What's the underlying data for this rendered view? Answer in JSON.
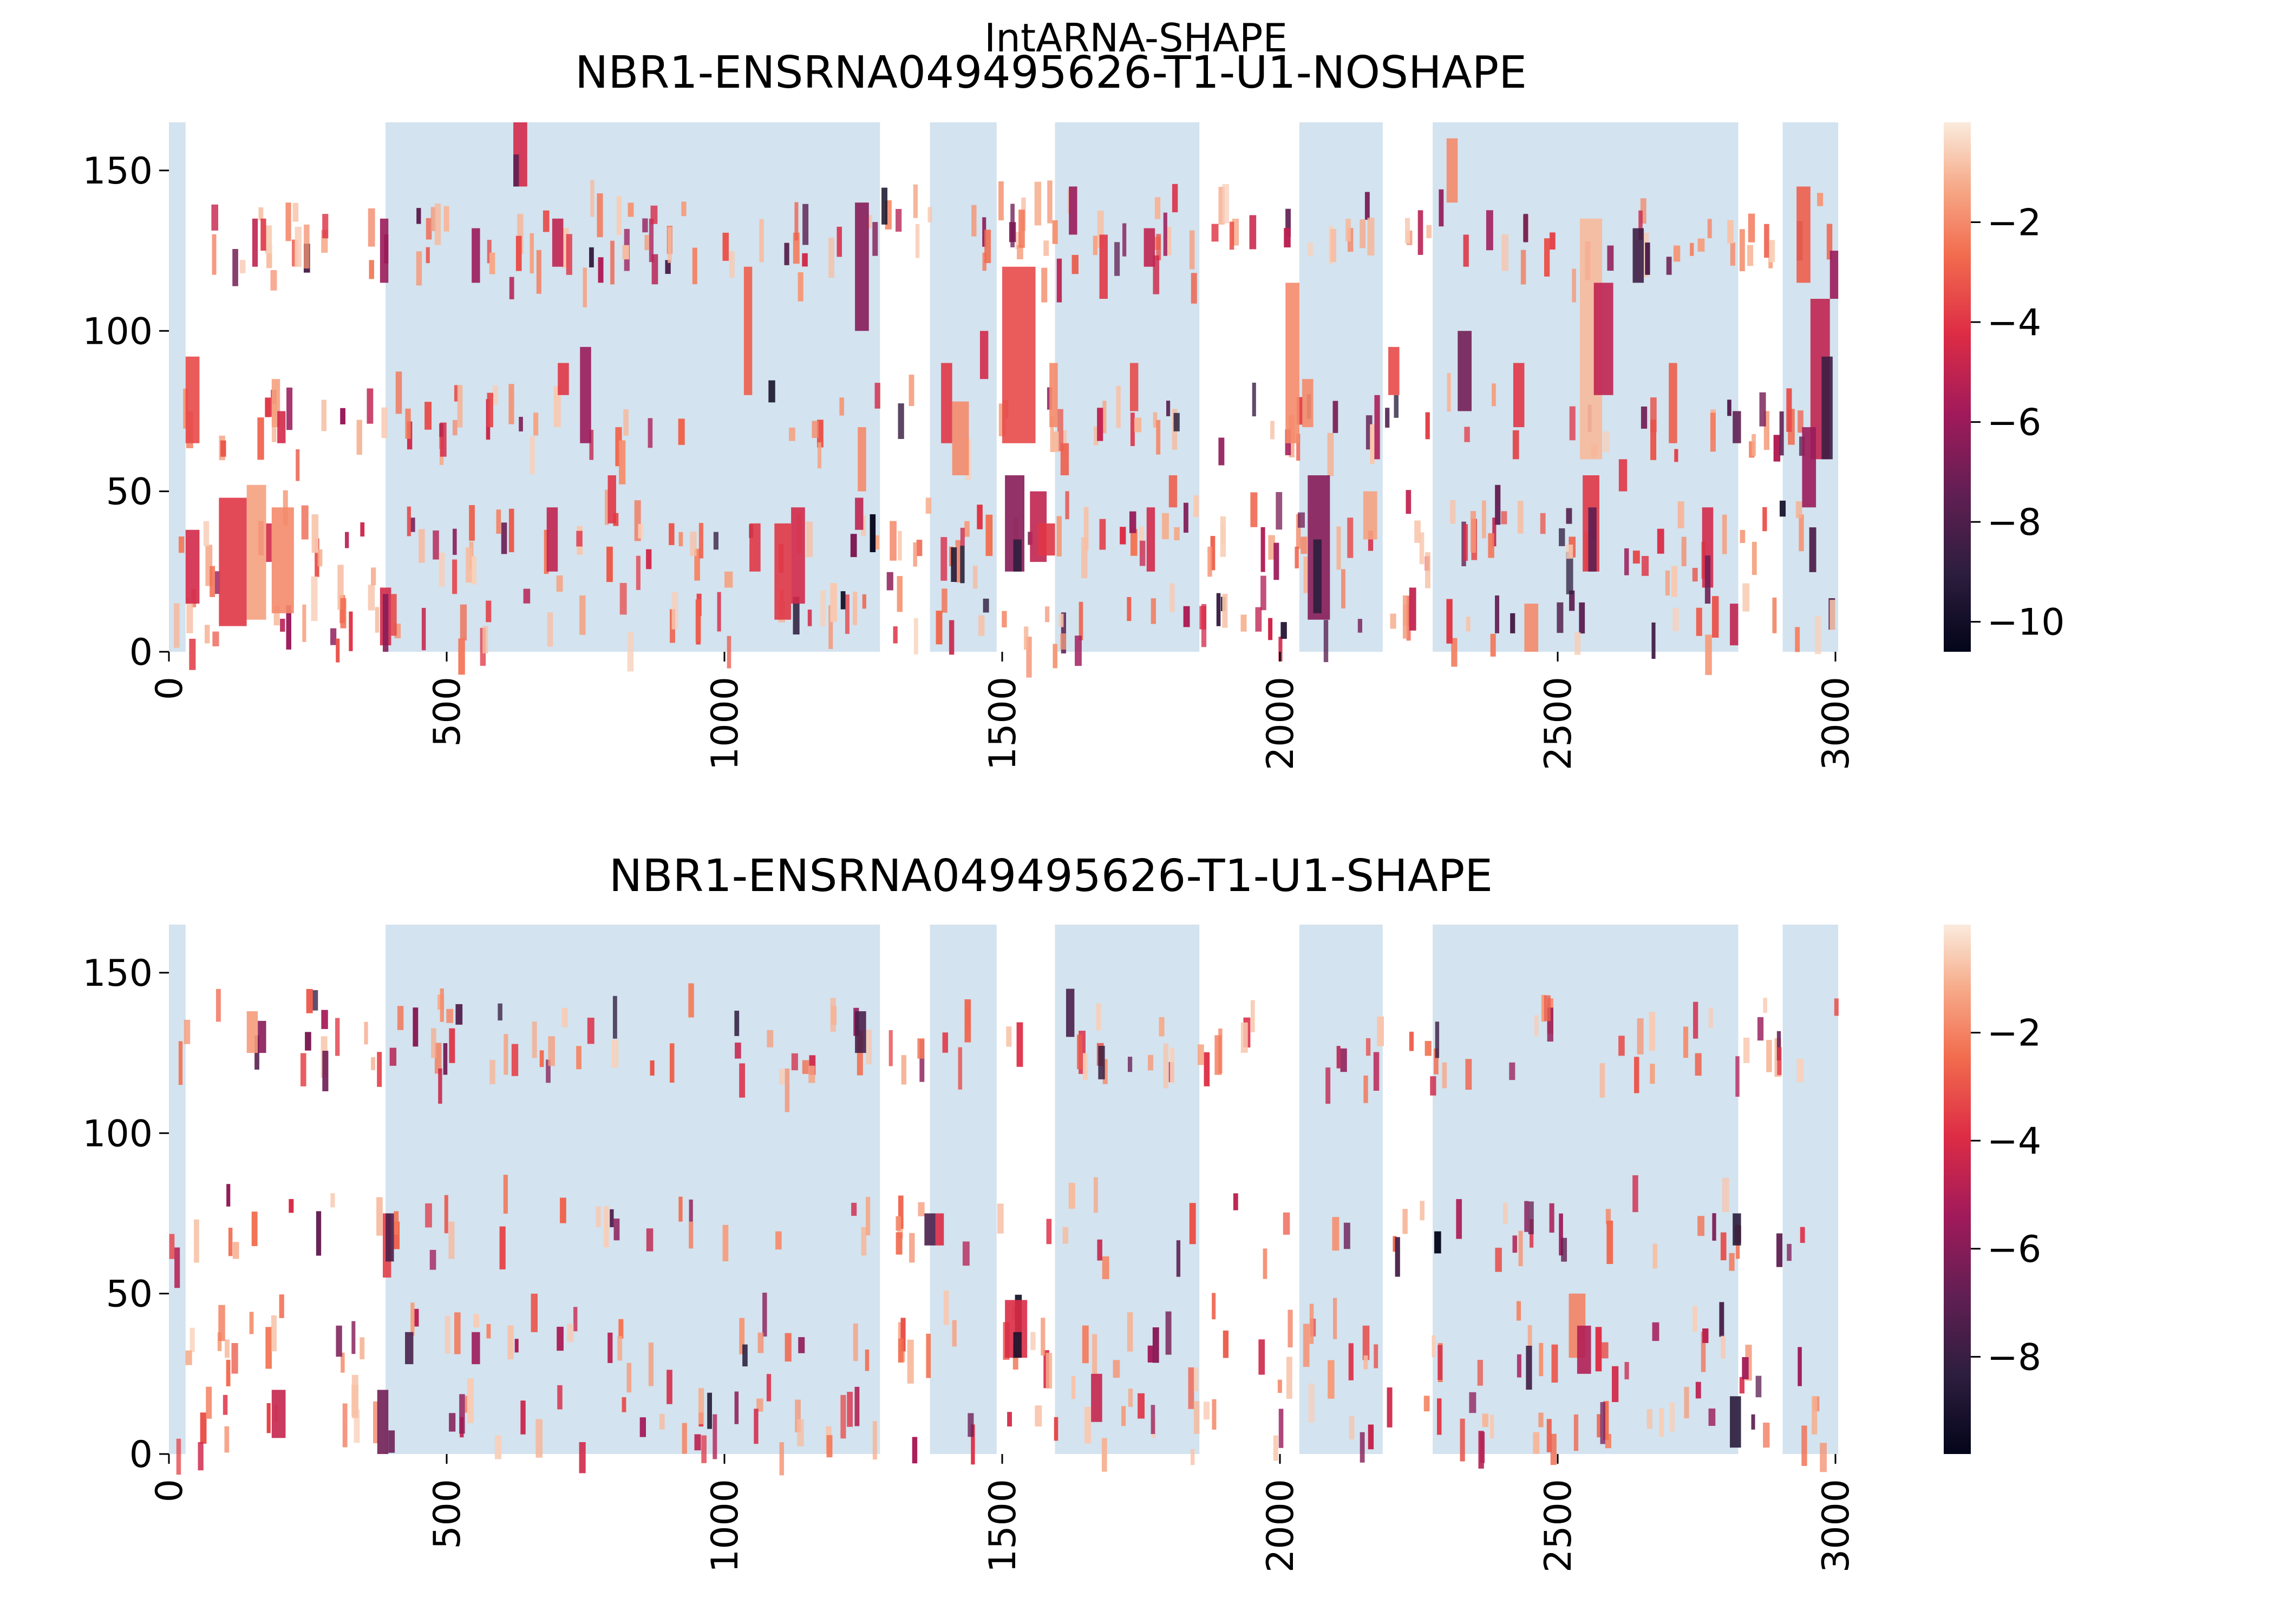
{
  "suptitle": "IntARNA-SHAPE",
  "chart_data": [
    {
      "type": "heatmap",
      "title": "NBR1-ENSRNA049495626-T1-U1-NOSHAPE",
      "xlim": [
        0,
        3000
      ],
      "ylim": [
        0,
        165
      ],
      "x_ticks": [
        "0",
        "500",
        "1000",
        "1500",
        "2000",
        "2500",
        "3000"
      ],
      "y_ticks": [
        "0",
        "50",
        "100",
        "150"
      ],
      "colorbar": {
        "min": -10.6,
        "max": 0,
        "ticks": [
          "-2",
          "-4",
          "-6",
          "-8",
          "-10"
        ],
        "tick_values": [
          -2,
          -4,
          -6,
          -8,
          -10
        ]
      },
      "highlight_regions": [
        [
          0,
          30
        ],
        [
          390,
          1280
        ],
        [
          1370,
          1490
        ],
        [
          1595,
          1855
        ],
        [
          2035,
          2185
        ],
        [
          2275,
          2825
        ],
        [
          2905,
          3005
        ]
      ],
      "cells": [
        [
          30,
          55,
          15,
          38,
          -4.5
        ],
        [
          30,
          55,
          65,
          92,
          -3.5
        ],
        [
          90,
          140,
          8,
          48,
          -4.0
        ],
        [
          140,
          175,
          10,
          52,
          -1.5
        ],
        [
          175,
          185,
          28,
          40,
          -4.5
        ],
        [
          185,
          225,
          12,
          45,
          -2.0
        ],
        [
          185,
          200,
          70,
          85,
          -1.5
        ],
        [
          195,
          210,
          65,
          75,
          -4.5
        ],
        [
          150,
          160,
          120,
          135,
          -5.0
        ],
        [
          165,
          175,
          125,
          135,
          -4.0
        ],
        [
          210,
          220,
          128,
          140,
          -2.0
        ],
        [
          380,
          400,
          2,
          20,
          -4.5
        ],
        [
          385,
          395,
          0,
          18,
          -6.5
        ],
        [
          400,
          410,
          5,
          18,
          -3.5
        ],
        [
          380,
          395,
          115,
          135,
          -6.0
        ],
        [
          620,
          645,
          145,
          165,
          -4.5
        ],
        [
          620,
          630,
          145,
          155,
          -7.5
        ],
        [
          545,
          560,
          115,
          132,
          -6.0
        ],
        [
          690,
          710,
          120,
          135,
          -5.0
        ],
        [
          700,
          720,
          80,
          90,
          -4.0
        ],
        [
          740,
          760,
          65,
          95,
          -6.0
        ],
        [
          680,
          700,
          25,
          45,
          -5.0
        ],
        [
          790,
          805,
          40,
          55,
          -4.0
        ],
        [
          1035,
          1050,
          80,
          120,
          -3.0
        ],
        [
          1045,
          1065,
          25,
          40,
          -4.0
        ],
        [
          1000,
          1015,
          20,
          25,
          -1.5
        ],
        [
          1090,
          1120,
          10,
          40,
          -4.0
        ],
        [
          1120,
          1145,
          15,
          45,
          -4.5
        ],
        [
          1235,
          1260,
          100,
          140,
          -6.5
        ],
        [
          1240,
          1255,
          50,
          70,
          -2.0
        ],
        [
          1235,
          1250,
          38,
          48,
          -5.0
        ],
        [
          1390,
          1410,
          65,
          90,
          -4.0
        ],
        [
          1410,
          1440,
          55,
          78,
          -2.0
        ],
        [
          1460,
          1475,
          85,
          100,
          -4.5
        ],
        [
          1500,
          1560,
          65,
          120,
          -3.5
        ],
        [
          1505,
          1540,
          25,
          55,
          -6.5
        ],
        [
          1520,
          1535,
          25,
          35,
          -9.0
        ],
        [
          1550,
          1580,
          28,
          50,
          -5.0
        ],
        [
          1565,
          1595,
          30,
          40,
          -4.0
        ],
        [
          1585,
          1600,
          70,
          90,
          -2.0
        ],
        [
          1605,
          1620,
          55,
          65,
          -3.0
        ],
        [
          1620,
          1635,
          130,
          145,
          -6.0
        ],
        [
          1675,
          1690,
          110,
          130,
          -4.0
        ],
        [
          1755,
          1775,
          120,
          132,
          -5.0
        ],
        [
          1730,
          1745,
          75,
          90,
          -3.5
        ],
        [
          1760,
          1775,
          25,
          45,
          -4.5
        ],
        [
          1800,
          1815,
          45,
          55,
          -3.0
        ],
        [
          2010,
          2035,
          65,
          115,
          -2.0
        ],
        [
          2040,
          2060,
          70,
          85,
          -2.0
        ],
        [
          2050,
          2090,
          10,
          55,
          -6.5
        ],
        [
          2060,
          2075,
          12,
          35,
          -9.0
        ],
        [
          2150,
          2175,
          35,
          50,
          -1.5
        ],
        [
          2170,
          2180,
          60,
          80,
          -5.5
        ],
        [
          2195,
          2215,
          80,
          95,
          -3.5
        ],
        [
          2320,
          2345,
          75,
          100,
          -7.0
        ],
        [
          2330,
          2340,
          120,
          130,
          -4.0
        ],
        [
          2300,
          2320,
          140,
          160,
          -2.0
        ],
        [
          2420,
          2440,
          70,
          90,
          -4.0
        ],
        [
          2440,
          2465,
          0,
          15,
          -2.0
        ],
        [
          2540,
          2580,
          60,
          135,
          -1.0
        ],
        [
          2545,
          2575,
          25,
          55,
          -4.0
        ],
        [
          2555,
          2570,
          25,
          45,
          -7.5
        ],
        [
          2565,
          2600,
          80,
          115,
          -5.0
        ],
        [
          2635,
          2655,
          115,
          132,
          -8.5
        ],
        [
          2610,
          2625,
          50,
          60,
          -4.0
        ],
        [
          2700,
          2715,
          65,
          90,
          -3.0
        ],
        [
          2760,
          2780,
          20,
          45,
          -4.5
        ],
        [
          2765,
          2775,
          15,
          30,
          -7.0
        ],
        [
          2810,
          2825,
          2,
          15,
          -5.0
        ],
        [
          2815,
          2830,
          65,
          75,
          -7.5
        ],
        [
          2930,
          2955,
          115,
          145,
          -3.0
        ],
        [
          2955,
          2990,
          60,
          110,
          -5.0
        ],
        [
          2975,
          2995,
          60,
          92,
          -8.5
        ],
        [
          2940,
          2965,
          45,
          70,
          -6.0
        ],
        [
          2990,
          3005,
          110,
          125,
          -6.0
        ]
      ]
    },
    {
      "type": "heatmap",
      "title": "NBR1-ENSRNA049495626-T1-U1-SHAPE",
      "xlim": [
        0,
        3000
      ],
      "ylim": [
        0,
        165
      ],
      "x_ticks": [
        "0",
        "500",
        "1000",
        "1500",
        "2000",
        "2500",
        "3000"
      ],
      "y_ticks": [
        "0",
        "50",
        "100",
        "150"
      ],
      "colorbar": {
        "min": -9.8,
        "max": 0,
        "ticks": [
          "-2",
          "-4",
          "-6",
          "-8"
        ],
        "tick_values": [
          -2,
          -4,
          -6,
          -8
        ]
      },
      "highlight_regions": [
        [
          0,
          30
        ],
        [
          390,
          1280
        ],
        [
          1370,
          1490
        ],
        [
          1595,
          1855
        ],
        [
          2035,
          2185
        ],
        [
          2275,
          2825
        ],
        [
          2905,
          3005
        ]
      ],
      "cells": [
        [
          140,
          160,
          125,
          138,
          -1.5
        ],
        [
          160,
          175,
          125,
          135,
          -6.0
        ],
        [
          185,
          210,
          5,
          20,
          -4.5
        ],
        [
          375,
          395,
          0,
          20,
          -6.5
        ],
        [
          385,
          400,
          55,
          75,
          -3.5
        ],
        [
          390,
          405,
          60,
          75,
          -7.5
        ],
        [
          425,
          440,
          28,
          38,
          -7.5
        ],
        [
          545,
          560,
          28,
          38,
          -5.5
        ],
        [
          1235,
          1255,
          125,
          138,
          -7.5
        ],
        [
          1360,
          1380,
          65,
          75,
          -7.5
        ],
        [
          1380,
          1395,
          65,
          75,
          -4.0
        ],
        [
          1505,
          1545,
          30,
          48,
          -4.0
        ],
        [
          1520,
          1535,
          30,
          38,
          -9.0
        ],
        [
          1615,
          1630,
          130,
          145,
          -7.5
        ],
        [
          1660,
          1680,
          10,
          25,
          -4.5
        ],
        [
          2520,
          2550,
          30,
          50,
          -2.0
        ],
        [
          2535,
          2560,
          25,
          40,
          -5.0
        ],
        [
          2810,
          2830,
          2,
          18,
          -8.5
        ],
        [
          2815,
          2830,
          65,
          75,
          -8.5
        ]
      ]
    }
  ]
}
